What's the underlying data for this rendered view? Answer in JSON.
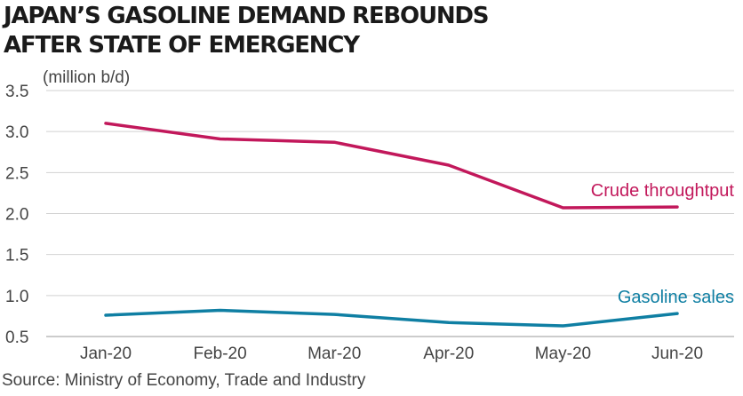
{
  "chart_data": {
    "type": "line",
    "title": [
      "JAPAN’S GASOLINE DEMAND REBOUNDS",
      "AFTER STATE OF EMERGENCY"
    ],
    "ylabel": "(million b/d)",
    "xlabel": "",
    "categories": [
      "Jan-20",
      "Feb-20",
      "Mar-20",
      "Apr-20",
      "May-20",
      "Jun-20"
    ],
    "ylim": [
      0.5,
      3.5
    ],
    "yticks": [
      "3.5",
      "3.0",
      "2.5",
      "2.0",
      "1.5",
      "1.0",
      "0.5"
    ],
    "grid": true,
    "series": [
      {
        "name": "Crude throughtput",
        "color": "#c2185b",
        "values": [
          3.1,
          2.91,
          2.87,
          2.59,
          2.07,
          2.08
        ]
      },
      {
        "name": "Gasoline sales",
        "color": "#0f7fa3",
        "values": [
          0.76,
          0.82,
          0.77,
          0.67,
          0.63,
          0.78
        ]
      }
    ],
    "source": "Source: Ministry of Economy, Trade and Industry"
  }
}
